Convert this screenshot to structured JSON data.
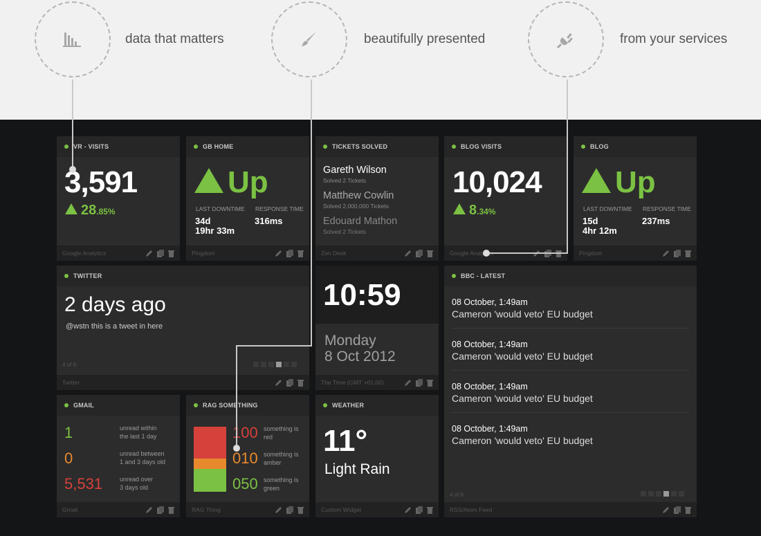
{
  "features": [
    {
      "icon": "bar-chart-icon",
      "text": "data that matters"
    },
    {
      "icon": "brush-icon",
      "text": "beautifully presented"
    },
    {
      "icon": "plug-icon",
      "text": "from your services"
    }
  ],
  "colors": {
    "accent_green": "#7bc143",
    "red": "#d6413c",
    "amber": "#e8892d"
  },
  "widgets": {
    "vr_visits": {
      "title": "VR - VISITS",
      "value": "3,591",
      "change_main": "28",
      "change_dec": ".85%",
      "source": "Google Analytics"
    },
    "gb_home": {
      "title": "GB HOME",
      "status": "Up",
      "downtime_label": "LAST DOWNTIME",
      "downtime_line1": "34d",
      "downtime_line2": "19hr 33m",
      "response_label": "RESPONSE TIME",
      "response_value": "316ms",
      "source": "Pingdom"
    },
    "tickets": {
      "title": "TICKETS SOLVED",
      "source": "Zen Desk",
      "people": [
        {
          "name": "Gareth Wilson",
          "detail": "Solved 2 Tickets"
        },
        {
          "name": "Matthew Cowlin",
          "detail": "Solved 2,000,000 Tickets"
        },
        {
          "name": "Edouard Mathon",
          "detail": "Solved 2 Tickets"
        }
      ]
    },
    "blog_visits": {
      "title": "BLOG VISITS",
      "value": "10,024",
      "change_main": "8",
      "change_dec": ".34%",
      "source": "Google Analytics"
    },
    "blog": {
      "title": "BLOG",
      "status": "Up",
      "downtime_label": "LAST DOWNTIME",
      "downtime_line1": "15d",
      "downtime_line2": "4hr 12m",
      "response_label": "RESPONSE TIME",
      "response_value": "237ms",
      "source": "Pingdom"
    },
    "twitter": {
      "title": "TWITTER",
      "headline": "2 days ago",
      "tweet": "@wstn this is a tweet in here",
      "page": "4 of 6",
      "pages": 6,
      "current_page": 4,
      "source": "Twitter"
    },
    "time": {
      "time": "10:59",
      "day": "Monday",
      "date": "8 Oct 2012",
      "source": "The Time (GMT +01:00)"
    },
    "bbc": {
      "title": "BBC - LATEST",
      "items": [
        {
          "date": "08 October, 1:49am",
          "headline": "Cameron 'would veto' EU budget"
        },
        {
          "date": "08 October, 1:49am",
          "headline": "Cameron 'would veto' EU budget"
        },
        {
          "date": "08 October, 1:49am",
          "headline": "Cameron 'would veto' EU budget"
        },
        {
          "date": "08 October, 1:49am",
          "headline": "Cameron 'would veto' EU budget"
        }
      ],
      "page": "4 of 6",
      "pages": 6,
      "current_page": 4,
      "source": "RSS/Atom Feed"
    },
    "gmail": {
      "title": "GMAIL",
      "rows": [
        {
          "count": "1",
          "text1": "unread within",
          "text2": "the last 1 day"
        },
        {
          "count": "0",
          "text1": "unread between",
          "text2": "1 and 3 days old"
        },
        {
          "count": "5,531",
          "text1": "unread over",
          "text2": "3 days old"
        }
      ],
      "source": "Gmail"
    },
    "rag": {
      "title": "RAG SOMETHING",
      "rows": [
        {
          "count": "100",
          "text1": "something is",
          "text2": "red"
        },
        {
          "count": "010",
          "text1": "something is",
          "text2": "amber"
        },
        {
          "count": "050",
          "text1": "something is",
          "text2": "green"
        }
      ],
      "source": "RAG Thing"
    },
    "weather": {
      "title": "WEATHER",
      "temp": "11°",
      "condition": "Light Rain",
      "source": "Custom Widget"
    }
  }
}
